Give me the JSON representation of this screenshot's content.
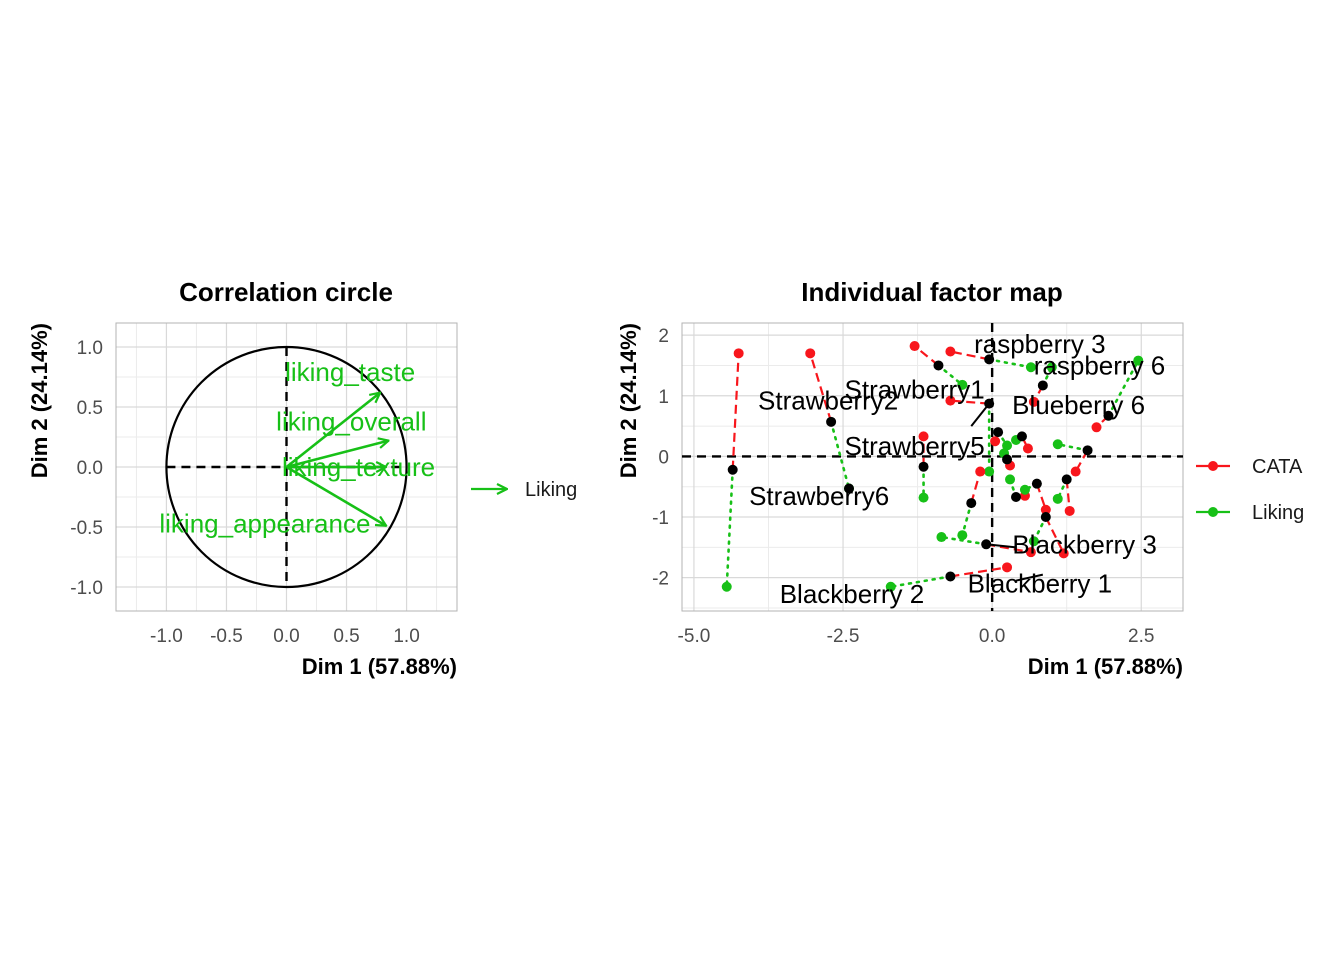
{
  "colors": {
    "cata": "#f8161c",
    "liking": "#17c017",
    "center": "#000000"
  },
  "left": {
    "title": "Correlation circle",
    "xlabel": "Dim 1 (57.88%)",
    "ylabel": "Dim 2 (24.14%)",
    "legend_label": "Liking"
  },
  "right": {
    "title": "Individual factor map",
    "xlabel": "Dim 1 (57.88%)",
    "ylabel": "Dim 2 (24.14%)",
    "legend": [
      "CATA",
      "Liking"
    ]
  },
  "chart_data": [
    {
      "type": "scatter",
      "subtype": "correlation-circle",
      "title": "Correlation circle",
      "xlabel": "Dim 1 (57.88%)",
      "ylabel": "Dim 2 (24.14%)",
      "xlim": [
        -1.42,
        1.42
      ],
      "ylim": [
        -1.2,
        1.2
      ],
      "xticks": [
        -1.0,
        -0.5,
        0.0,
        0.5,
        1.0
      ],
      "yticks": [
        -1.0,
        -0.5,
        0.0,
        0.5,
        1.0
      ],
      "grid": true,
      "vectors": [
        {
          "name": "liking_taste",
          "x": 0.78,
          "y": 0.62
        },
        {
          "name": "liking_overall",
          "x": 0.85,
          "y": 0.22
        },
        {
          "name": "liking_texture",
          "x": 0.83,
          "y": 0.0
        },
        {
          "name": "liking_appearance",
          "x": 0.83,
          "y": -0.49
        }
      ],
      "legend": [
        "Liking"
      ]
    },
    {
      "type": "scatter",
      "subtype": "individual-factor-map",
      "title": "Individual factor map",
      "xlabel": "Dim 1 (57.88%)",
      "ylabel": "Dim 2 (24.14%)",
      "xlim": [
        -5.2,
        3.2
      ],
      "ylim": [
        -2.55,
        2.2
      ],
      "xticks": [
        -5.0,
        -2.5,
        0.0,
        2.5
      ],
      "yticks": [
        -2,
        -1,
        0,
        1,
        2
      ],
      "grid": true,
      "legend_position": "right",
      "series": [
        {
          "name": "CATA",
          "color": "#f8161c",
          "style": "dashed"
        },
        {
          "name": "Liking",
          "color": "#17c017",
          "style": "dotted"
        }
      ],
      "individuals": [
        {
          "name": "",
          "x": -4.35,
          "y": -0.22,
          "cata": [
            -4.25,
            1.7
          ],
          "liking": [
            -4.45,
            -2.15
          ]
        },
        {
          "name": "Strawberry2",
          "x": -2.7,
          "y": 0.57,
          "cata": [
            -3.05,
            1.7
          ],
          "liking": [
            -2.4,
            -0.53
          ]
        },
        {
          "name": "Strawberry1",
          "x": -0.9,
          "y": 1.5,
          "cata": [
            -1.3,
            1.82
          ],
          "liking": [
            -0.5,
            1.18
          ]
        },
        {
          "name": "Strawberry5",
          "x": -1.15,
          "y": -0.17,
          "cata": [
            -1.15,
            0.33
          ],
          "liking": [
            -1.15,
            -0.68
          ]
        },
        {
          "name": "raspberry 3",
          "x": -0.05,
          "y": 1.6,
          "cata": [
            -0.7,
            1.73
          ],
          "liking": [
            0.65,
            1.47
          ]
        },
        {
          "name": "raspberry 6",
          "x": 0.85,
          "y": 1.17,
          "cata": [
            0.7,
            0.9
          ],
          "liking": [
            1.0,
            1.47
          ]
        },
        {
          "name": "Blueberry 6",
          "x": 1.95,
          "y": 0.67,
          "cata": [
            1.75,
            0.48
          ],
          "liking": [
            2.45,
            1.58
          ]
        },
        {
          "name": "",
          "x": -0.05,
          "y": 0.87,
          "cata": [
            -0.7,
            0.92
          ],
          "liking": [
            -0.05,
            -0.25
          ]
        },
        {
          "name": "",
          "x": 0.1,
          "y": 0.4,
          "cata": [
            0.05,
            0.25
          ],
          "liking": [
            0.25,
            0.18
          ]
        },
        {
          "name": "",
          "x": 0.5,
          "y": 0.33,
          "cata": [
            0.6,
            0.13
          ],
          "liking": [
            0.4,
            0.27
          ]
        },
        {
          "name": "",
          "x": 1.6,
          "y": 0.1,
          "cata": [
            1.4,
            -0.25
          ],
          "liking": [
            1.1,
            0.2
          ]
        },
        {
          "name": "",
          "x": 0.25,
          "y": -0.05,
          "cata": [
            0.3,
            -0.15
          ],
          "liking": [
            0.2,
            0.05
          ]
        },
        {
          "name": "",
          "x": 0.4,
          "y": -0.67,
          "cata": [
            0.55,
            -0.65
          ],
          "liking": [
            0.3,
            -0.38
          ]
        },
        {
          "name": "",
          "x": 0.75,
          "y": -0.45,
          "cata": [
            0.9,
            -0.88
          ],
          "liking": [
            0.55,
            -0.55
          ]
        },
        {
          "name": "",
          "x": 1.25,
          "y": -0.38,
          "cata": [
            1.3,
            -0.9
          ],
          "liking": [
            1.1,
            -0.7
          ]
        },
        {
          "name": "",
          "x": 0.9,
          "y": -1.0,
          "cata": [
            1.2,
            -1.6
          ],
          "liking": [
            0.7,
            -1.4
          ]
        },
        {
          "name": "Blackberry 3",
          "x": -0.1,
          "y": -1.45,
          "cata": [
            0.65,
            -1.58
          ],
          "liking": [
            -0.85,
            -1.33
          ]
        },
        {
          "name": "",
          "x": -0.35,
          "y": -0.77,
          "cata": [
            -0.2,
            -0.25
          ],
          "liking": [
            -0.5,
            -1.3
          ]
        },
        {
          "name": "Blackberry 1",
          "x": -0.7,
          "y": -1.98,
          "cata": [
            0.25,
            -1.83
          ],
          "liking": [
            -1.7,
            -2.15
          ]
        },
        {
          "name": "Blackberry 2",
          "x": -0.7,
          "y": -1.98,
          "cata": null,
          "liking": null
        },
        {
          "name": "Strawberry6",
          "x": -2.4,
          "y": -0.53,
          "cata": null,
          "liking": null
        }
      ]
    }
  ]
}
